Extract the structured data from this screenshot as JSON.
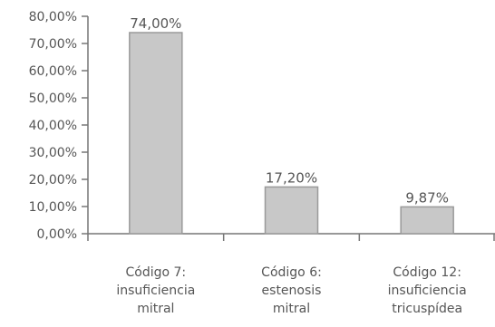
{
  "chart_data": {
    "type": "bar",
    "title": "",
    "xlabel": "",
    "ylabel": "",
    "categories": [
      [
        "Código 7:",
        "insuficiencia",
        "mitral"
      ],
      [
        "Código 6:",
        "estenosis",
        "mitral"
      ],
      [
        "Código 12:",
        "insuficiencia",
        "tricuspídea"
      ]
    ],
    "values": [
      74.0,
      17.2,
      9.87
    ],
    "data_labels": [
      "74,00%",
      "17,20%",
      "9,87%"
    ],
    "ylim": [
      0,
      80
    ],
    "yticks": [
      0,
      10,
      20,
      30,
      40,
      50,
      60,
      70,
      80
    ],
    "ytick_labels": [
      "0,00%",
      "10,00%",
      "20,00%",
      "30,00%",
      "40,00%",
      "50,00%",
      "60,00%",
      "70,00%",
      "80,00%"
    ],
    "grid": false,
    "legend": "none",
    "colors": {
      "bar_fill": "#c8c8c8",
      "bar_stroke": "#9a9a9a",
      "axis": "#777777",
      "text": "#555555"
    }
  }
}
